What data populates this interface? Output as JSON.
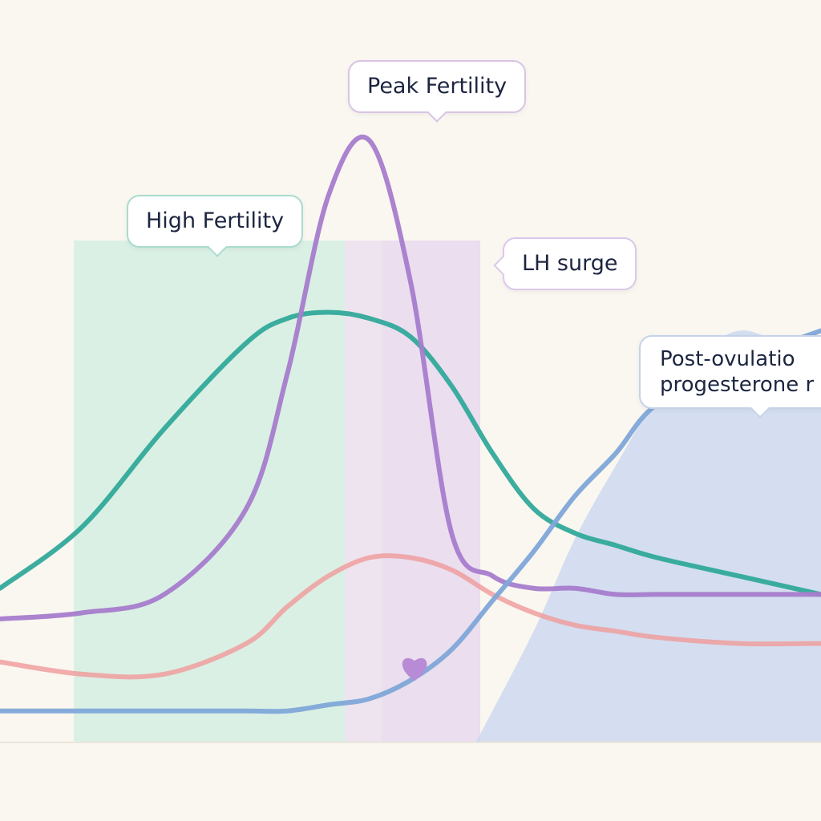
{
  "chart_data": {
    "type": "line",
    "title": "",
    "xlabel": "",
    "ylabel": "",
    "grid": false,
    "legend": "none",
    "xlim": [
      0,
      100
    ],
    "ylim": [
      0,
      100
    ],
    "x": [
      0,
      10,
      20,
      30,
      35,
      40,
      45,
      50,
      55,
      60,
      65,
      70,
      75,
      80,
      90,
      100
    ],
    "series": [
      {
        "color": "#31a99a",
        "values": [
          25,
          35,
          51,
          65,
          69,
          70,
          69,
          66,
          58,
          47,
          38,
          34,
          32,
          30,
          27,
          24
        ]
      },
      {
        "color": "#a77ccc",
        "values": [
          20,
          21,
          24,
          38,
          60,
          89,
          98,
          75,
          34,
          27,
          25,
          25,
          24,
          24,
          24,
          24
        ]
      },
      {
        "color": "#ee9f9f",
        "values": [
          13,
          11,
          11,
          16,
          22,
          27,
          30,
          30,
          28,
          24,
          21,
          19,
          18,
          17,
          16,
          16
        ]
      },
      {
        "color": "#7fa6d8",
        "values": [
          5,
          5,
          5,
          5,
          5,
          6,
          7,
          10,
          15,
          23,
          31,
          40,
          47,
          55,
          62,
          67
        ]
      }
    ],
    "bands": [
      {
        "from": 9,
        "to": 42,
        "color": "#d3eee2",
        "label": "High Fertility"
      },
      {
        "from": 42,
        "to": 46.5,
        "color": "#ebe1ef",
        "label": ""
      },
      {
        "from": 46.5,
        "to": 58.5,
        "color": "#e6d9ef",
        "label": "Peak Fertility"
      }
    ],
    "area": {
      "color": "#c7d5f0",
      "x": [
        58,
        65,
        70,
        75,
        80,
        85,
        90,
        95,
        100
      ],
      "values": [
        0,
        18,
        33,
        45,
        56,
        63,
        67,
        65,
        62
      ]
    },
    "annotations": [
      {
        "id": "high",
        "text": "High Fertility"
      },
      {
        "id": "peak",
        "text": "Peak Fertility"
      },
      {
        "id": "lh",
        "text": "LH surge"
      },
      {
        "id": "post",
        "lines": [
          "Post-ovulatio",
          "progesterone r"
        ]
      }
    ],
    "marker": {
      "icon": "heart-icon",
      "x": 50.5,
      "y": 12,
      "color": "#b88bd6"
    }
  }
}
